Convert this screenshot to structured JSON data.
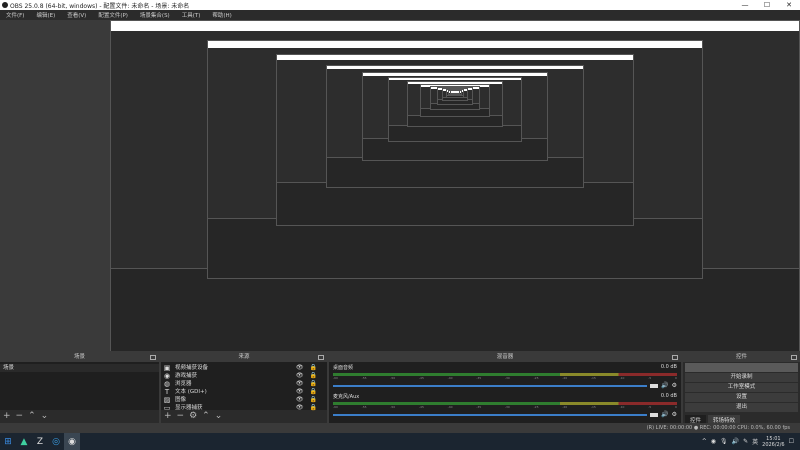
{
  "window": {
    "title": "OBS 25.0.8 (64-bit, windows) - 配置文件: 未命名 - 场景: 未命名",
    "minimize": "—",
    "maximize": "☐",
    "close": "✕"
  },
  "menu": [
    "文件(F)",
    "编辑(E)",
    "查看(V)",
    "配置文件(P)",
    "场景集合(S)",
    "工具(T)",
    "帮助(H)"
  ],
  "scenes": {
    "title": "场景",
    "items": [
      "场景"
    ]
  },
  "sources": {
    "title": "来源",
    "items": [
      {
        "label": "视频捕获设备",
        "icon": "camera-icon",
        "glyph": "▣"
      },
      {
        "label": "游戏捕获",
        "icon": "gamepad-icon",
        "glyph": "◉"
      },
      {
        "label": "浏览器",
        "icon": "globe-icon",
        "glyph": "◍"
      },
      {
        "label": "文本 (GDI+)",
        "icon": "text-icon",
        "glyph": "T"
      },
      {
        "label": "图像",
        "icon": "image-icon",
        "glyph": "▨"
      },
      {
        "label": "显示器捕获",
        "icon": "monitor-icon",
        "glyph": "▭"
      }
    ]
  },
  "mixer": {
    "title": "混音器",
    "channels": [
      {
        "name": "桌面音频",
        "db": "0.0 dB",
        "volume": 1.0
      },
      {
        "name": "麦克风/Aux",
        "db": "0.0 dB",
        "volume": 1.0
      }
    ],
    "ticks": [
      "-60",
      "-55",
      "-50",
      "-45",
      "-40",
      "-35",
      "-30",
      "-25",
      "-20",
      "-15",
      "-10",
      "-5",
      "0"
    ]
  },
  "controls": {
    "title": "控件",
    "buttons": [
      "",
      "开始录制",
      "工作室模式",
      "设置",
      "退出"
    ],
    "tabs": [
      "控件",
      "转场特效"
    ]
  },
  "status": "(R) LIVE: 00:00:00   ● REC: 00:00:00   CPU: 0.0%, 60.00 fps",
  "taskbar": {
    "time": "15:01",
    "date": "2026/2/6",
    "ime": "英"
  },
  "colors": {
    "meter_green": "#2f7d2f",
    "meter_yellow": "#8a8a2a",
    "meter_red": "#8a2a2a",
    "fader": "#3b7ec9"
  }
}
